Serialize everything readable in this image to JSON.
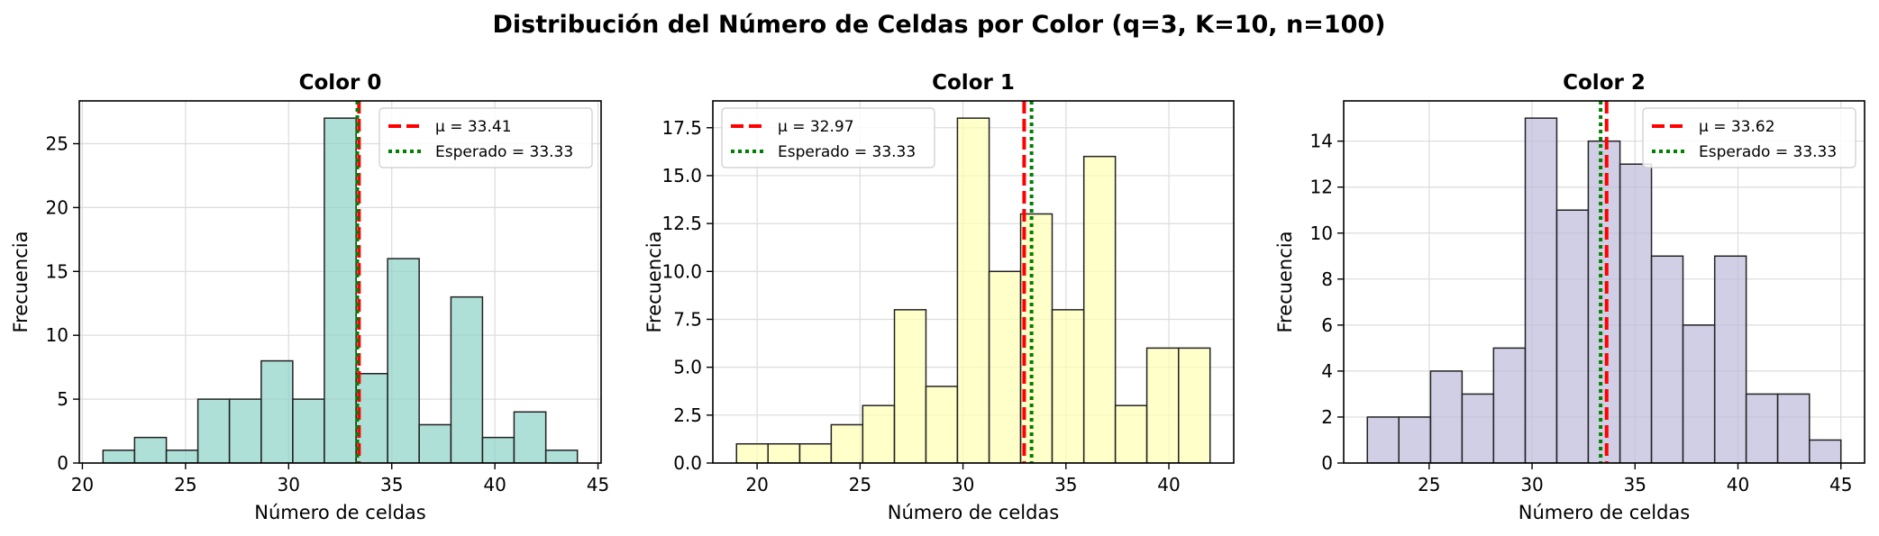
{
  "suptitle": "Distribución del Número de Celdas por Color (q=3, K=10, n=100)",
  "chart_data": [
    {
      "type": "bar",
      "title": "Color 0",
      "xlabel": "Número de celdas",
      "ylabel": "Frecuencia",
      "color": "#8dd3c7",
      "bin_edges": [
        21.0,
        22.53,
        24.07,
        25.6,
        27.13,
        28.67,
        30.2,
        31.73,
        33.27,
        34.8,
        36.33,
        37.87,
        39.4,
        40.93,
        42.47,
        44.0
      ],
      "counts": [
        1,
        2,
        1,
        5,
        5,
        8,
        5,
        27,
        7,
        16,
        3,
        13,
        2,
        4,
        1
      ],
      "mean": 33.41,
      "expected": 33.33,
      "xlim": [
        19.85,
        45.15
      ],
      "ylim": [
        0,
        28.35
      ],
      "xticks": [
        20,
        25,
        30,
        35,
        40,
        45
      ],
      "yticks": [
        0,
        5,
        10,
        15,
        20,
        25
      ],
      "ytick_labels": [
        "0",
        "5",
        "10",
        "15",
        "20",
        "25"
      ],
      "legend": [
        "μ = 33.41",
        "Esperado = 33.33"
      ],
      "legend_position": "top-right"
    },
    {
      "type": "bar",
      "title": "Color 1",
      "xlabel": "Número de celdas",
      "ylabel": "Frecuencia",
      "color": "#ffffb3",
      "bin_edges": [
        19.0,
        20.53,
        22.07,
        23.6,
        25.13,
        26.67,
        28.2,
        29.73,
        31.27,
        32.8,
        34.33,
        35.87,
        37.4,
        38.93,
        40.47,
        42.0
      ],
      "counts": [
        1,
        1,
        1,
        2,
        3,
        8,
        4,
        18,
        10,
        13,
        8,
        16,
        3,
        6,
        6
      ],
      "mean": 32.97,
      "expected": 33.33,
      "xlim": [
        17.85,
        43.15
      ],
      "ylim": [
        0,
        18.9
      ],
      "xticks": [
        20,
        25,
        30,
        35,
        40
      ],
      "yticks": [
        0,
        2.5,
        5,
        7.5,
        10,
        12.5,
        15,
        17.5
      ],
      "ytick_labels": [
        "0.0",
        "2.5",
        "5.0",
        "7.5",
        "10.0",
        "12.5",
        "15.0",
        "17.5"
      ],
      "legend": [
        "μ = 32.97",
        "Esperado = 33.33"
      ],
      "legend_position": "top-left"
    },
    {
      "type": "bar",
      "title": "Color 2",
      "xlabel": "Número de celdas",
      "ylabel": "Frecuencia",
      "color": "#bebada",
      "bin_edges": [
        22.0,
        23.53,
        25.07,
        26.6,
        28.13,
        29.67,
        31.2,
        32.73,
        34.27,
        35.8,
        37.33,
        38.87,
        40.4,
        41.93,
        43.47,
        45.0
      ],
      "counts": [
        2,
        2,
        4,
        3,
        5,
        15,
        11,
        14,
        13,
        9,
        6,
        9,
        3,
        3,
        1
      ],
      "mean": 33.62,
      "expected": 33.33,
      "xlim": [
        20.85,
        46.15
      ],
      "ylim": [
        0,
        15.75
      ],
      "xticks": [
        25,
        30,
        35,
        40,
        45
      ],
      "yticks": [
        0,
        2,
        4,
        6,
        8,
        10,
        12,
        14
      ],
      "ytick_labels": [
        "0",
        "2",
        "4",
        "6",
        "8",
        "10",
        "12",
        "14"
      ],
      "legend": [
        "μ = 33.62",
        "Esperado = 33.33"
      ],
      "legend_position": "top-right"
    }
  ],
  "styles": {
    "mean_line_color": "#ff0000",
    "expected_line_color": "#008000",
    "bar_edge_color": "#222222",
    "grid_color": "#dcdcdc"
  }
}
